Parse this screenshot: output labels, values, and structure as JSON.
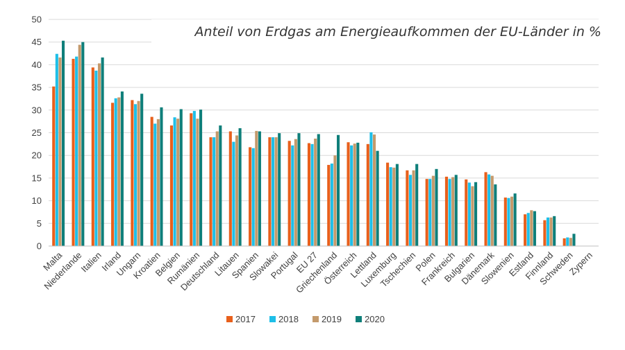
{
  "chart_data": {
    "type": "bar",
    "title": "Anteil von Erdgas am Energieaufkommen der EU-Länder in %",
    "xlabel": "",
    "ylabel": "",
    "ylim": [
      0,
      50
    ],
    "yticks": [
      0,
      5,
      10,
      15,
      20,
      25,
      30,
      35,
      40,
      45,
      50
    ],
    "grid": "horizontal",
    "legend_position": "bottom",
    "categories": [
      "Malta",
      "Niederlande",
      "Italien",
      "Irland",
      "Ungarn",
      "Kroatien",
      "Belgien",
      "Rumänien",
      "Deutschland",
      "Litauen",
      "Spanien",
      "Slowakei",
      "Portugal",
      "EU 27",
      "Griechenland",
      "Österreich",
      "Lettland",
      "Luxemburg",
      "Tschechien",
      "Polen",
      "Frankreich",
      "Bulgarien",
      "Dänemark",
      "Slowenien",
      "Estland",
      "Finnland",
      "Schweden",
      "Zypern"
    ],
    "series": [
      {
        "name": "2017",
        "color": "#e8601c",
        "values": [
          35.2,
          41.3,
          39.4,
          31.6,
          32.2,
          28.5,
          26.6,
          29.3,
          24.0,
          25.3,
          21.8,
          24.0,
          23.2,
          22.7,
          17.9,
          22.9,
          22.5,
          18.4,
          16.7,
          14.8,
          15.3,
          14.7,
          16.3,
          10.7,
          7.0,
          5.7,
          1.7,
          0
        ]
      },
      {
        "name": "2018",
        "color": "#1ebfe8",
        "values": [
          42.4,
          41.8,
          38.7,
          32.6,
          31.3,
          27.0,
          28.4,
          29.8,
          24.0,
          23.0,
          21.6,
          24.0,
          22.2,
          22.5,
          18.2,
          22.2,
          25.1,
          17.4,
          15.7,
          14.8,
          14.8,
          14.0,
          15.8,
          10.6,
          7.3,
          6.3,
          1.9,
          0
        ]
      },
      {
        "name": "2019",
        "color": "#c49a6c",
        "values": [
          41.6,
          44.4,
          40.3,
          32.8,
          32.0,
          28.0,
          28.1,
          28.1,
          25.3,
          24.4,
          25.4,
          24.0,
          23.6,
          23.7,
          20.0,
          22.6,
          24.6,
          17.3,
          16.7,
          15.5,
          15.2,
          13.2,
          15.5,
          10.9,
          7.9,
          6.3,
          1.8,
          0
        ]
      },
      {
        "name": "2020",
        "color": "#0f7f7a",
        "values": [
          45.3,
          45.0,
          41.6,
          34.1,
          33.6,
          30.6,
          30.2,
          30.1,
          26.6,
          26.0,
          25.3,
          24.9,
          24.9,
          24.7,
          24.5,
          22.8,
          21.0,
          18.1,
          18.1,
          17.0,
          15.7,
          14.1,
          13.6,
          11.6,
          7.7,
          6.6,
          2.7,
          0
        ]
      }
    ]
  }
}
